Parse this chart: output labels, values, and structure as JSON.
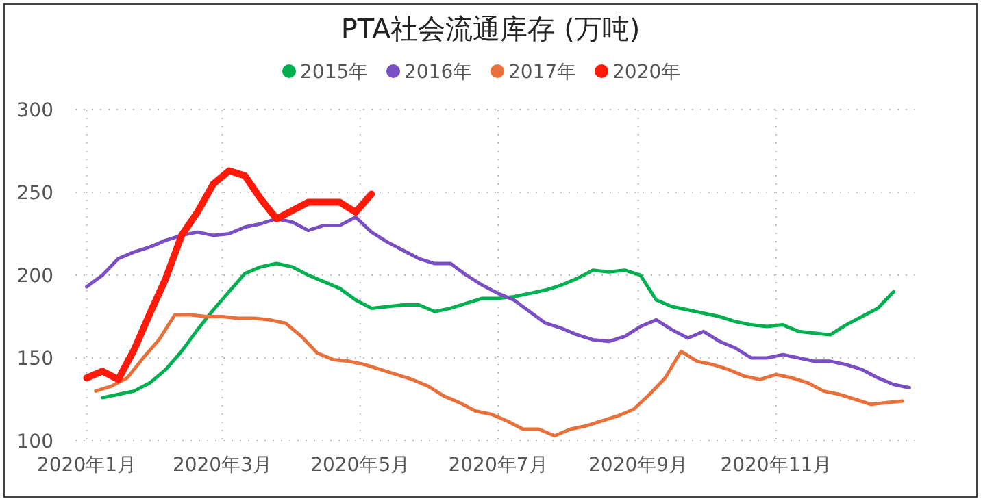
{
  "chart_data": {
    "type": "line",
    "title": "PTA社会流通库存 (万吨)",
    "x": [
      "2020-01-01",
      "2020-01-08",
      "2020-01-15",
      "2020-01-22",
      "2020-01-29",
      "2020-02-05",
      "2020-02-12",
      "2020-02-19",
      "2020-02-26",
      "2020-03-04",
      "2020-03-11",
      "2020-03-18",
      "2020-03-25",
      "2020-04-01",
      "2020-04-08",
      "2020-04-15",
      "2020-04-22",
      "2020-04-29",
      "2020-05-06",
      "2020-05-13",
      "2020-05-20",
      "2020-05-27",
      "2020-06-03",
      "2020-06-10",
      "2020-06-17",
      "2020-06-24",
      "2020-07-01",
      "2020-07-08",
      "2020-07-15",
      "2020-07-22",
      "2020-07-29",
      "2020-08-05",
      "2020-08-12",
      "2020-08-19",
      "2020-08-26",
      "2020-09-02",
      "2020-09-09",
      "2020-09-16",
      "2020-09-23",
      "2020-09-30",
      "2020-10-07",
      "2020-10-14",
      "2020-10-21",
      "2020-10-28",
      "2020-11-04",
      "2020-11-11",
      "2020-11-18",
      "2020-11-25",
      "2020-12-02",
      "2020-12-09",
      "2020-12-16",
      "2020-12-23",
      "2020-12-30"
    ],
    "series": [
      {
        "name": "2015年",
        "color": "#00b050",
        "values": [
          null,
          126,
          128,
          130,
          135,
          143,
          154,
          167,
          179,
          190,
          201,
          205,
          207,
          205,
          200,
          196,
          192,
          185,
          180,
          181,
          182,
          182,
          178,
          180,
          183,
          186,
          186,
          187,
          189,
          191,
          194,
          198,
          203,
          202,
          203,
          200,
          185,
          181,
          179,
          177,
          175,
          172,
          170,
          169,
          170,
          166,
          165,
          164,
          170,
          175,
          180,
          190,
          null
        ]
      },
      {
        "name": "2016年",
        "color": "#7b4fc4",
        "values": [
          193,
          200,
          210,
          214,
          217,
          221,
          224,
          226,
          224,
          225,
          229,
          231,
          234,
          232,
          227,
          230,
          230,
          235,
          226,
          220,
          215,
          210,
          207,
          207,
          200,
          194,
          189,
          185,
          178,
          171,
          168,
          164,
          161,
          160,
          163,
          169,
          173,
          167,
          162,
          166,
          160,
          156,
          150,
          150,
          152,
          150,
          148,
          148,
          146,
          143,
          138,
          134,
          132
        ]
      },
      {
        "name": "2017年",
        "color": "#e8703a",
        "x": [
          "2020-01-05",
          "2020-01-12",
          "2020-01-19",
          "2020-01-26",
          "2020-02-02",
          "2020-02-09",
          "2020-02-16",
          "2020-02-23",
          "2020-03-01",
          "2020-03-08",
          "2020-03-15",
          "2020-03-22",
          "2020-03-29",
          "2020-04-05",
          "2020-04-12",
          "2020-04-19",
          "2020-04-26",
          "2020-05-03",
          "2020-05-10",
          "2020-05-17",
          "2020-05-24",
          "2020-05-31",
          "2020-06-07",
          "2020-06-14",
          "2020-06-21",
          "2020-06-28",
          "2020-07-05",
          "2020-07-12",
          "2020-07-19",
          "2020-07-26",
          "2020-08-02",
          "2020-08-09",
          "2020-08-16",
          "2020-08-23",
          "2020-08-30",
          "2020-09-06",
          "2020-09-13",
          "2020-09-20",
          "2020-09-27",
          "2020-10-04",
          "2020-10-11",
          "2020-10-18",
          "2020-10-25",
          "2020-11-01",
          "2020-11-08",
          "2020-11-15",
          "2020-11-22",
          "2020-11-29",
          "2020-12-06",
          "2020-12-13",
          "2020-12-20",
          "2020-12-27"
        ],
        "values": [
          130,
          133,
          138,
          150,
          161,
          176,
          176,
          175,
          175,
          174,
          174,
          173,
          171,
          163,
          153,
          149,
          148,
          146,
          143,
          140,
          137,
          133,
          127,
          123,
          118,
          116,
          112,
          107,
          107,
          103,
          107,
          109,
          112,
          115,
          119,
          128,
          138,
          154,
          148,
          146,
          143,
          139,
          137,
          140,
          138,
          135,
          130,
          128,
          125,
          122,
          123,
          124
        ]
      },
      {
        "name": "2020年",
        "color": "#ff1a0a",
        "values": [
          138,
          142,
          137,
          155,
          177,
          198,
          224,
          238,
          255,
          263,
          260,
          246,
          234,
          239,
          244,
          244,
          244,
          238,
          249,
          null,
          null,
          null,
          null,
          null,
          null,
          null,
          null,
          null,
          null,
          null,
          null,
          null,
          null,
          null,
          null,
          null,
          null,
          null,
          null,
          null,
          null,
          null,
          null,
          null,
          null,
          null,
          null,
          null,
          null,
          null,
          null,
          null,
          null
        ]
      }
    ],
    "xlim": [
      "2019-12-27",
      "2021-01-04"
    ],
    "xticks": [
      {
        "value": "2020-01-01",
        "label": "2020年1月"
      },
      {
        "value": "2020-03-01",
        "label": "2020年3月"
      },
      {
        "value": "2020-05-01",
        "label": "2020年5月"
      },
      {
        "value": "2020-07-01",
        "label": "2020年7月"
      },
      {
        "value": "2020-09-01",
        "label": "2020年9月"
      },
      {
        "value": "2020-11-01",
        "label": "2020年11月"
      }
    ],
    "ylim": [
      100,
      300
    ],
    "yticks": [
      100,
      150,
      200,
      250,
      300
    ],
    "grid": true,
    "legend": "top",
    "marker": "none"
  }
}
